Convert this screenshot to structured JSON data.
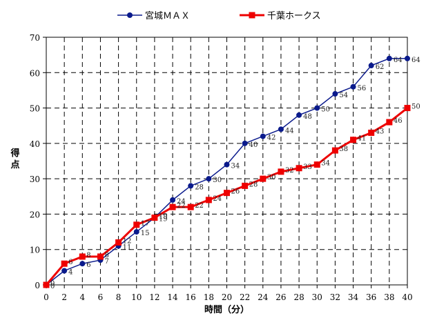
{
  "chart_data": {
    "type": "line",
    "title": "",
    "xlabel": "時間（分）",
    "ylabel": "得点",
    "xlim": [
      0,
      40
    ],
    "ylim": [
      0,
      70
    ],
    "x_ticks": [
      "0",
      "2",
      "4",
      "6",
      "8",
      "10",
      "12",
      "14",
      "16",
      "18",
      "20",
      "22",
      "24",
      "26",
      "28",
      "30",
      "32",
      "34",
      "36",
      "38",
      "40"
    ],
    "y_ticks": [
      "0",
      "10",
      "20",
      "30",
      "40",
      "50",
      "60",
      "70"
    ],
    "grid": "dashed",
    "legend_position": "top-center",
    "series": [
      {
        "name": "宮城ＭＡＸ",
        "color": "#0a1a8c",
        "marker": "circle",
        "x": [
          0,
          2,
          4,
          6,
          8,
          10,
          12,
          14,
          16,
          18,
          20,
          22,
          24,
          26,
          28,
          30,
          32,
          34,
          36,
          38,
          40
        ],
        "values": [
          0,
          4,
          6,
          7,
          11,
          15,
          19,
          24,
          28,
          30,
          34,
          40,
          42,
          44,
          48,
          50,
          54,
          56,
          62,
          64,
          64
        ]
      },
      {
        "name": "千葉ホークス",
        "color": "#ee0000",
        "marker": "square",
        "x": [
          0,
          2,
          4,
          6,
          8,
          10,
          12,
          14,
          16,
          18,
          20,
          22,
          24,
          26,
          28,
          30,
          32,
          34,
          36,
          38,
          40
        ],
        "values": [
          0,
          6,
          8,
          8,
          12,
          17,
          19,
          22,
          22,
          24,
          26,
          28,
          30,
          32,
          33,
          34,
          38,
          41,
          43,
          46,
          50
        ]
      }
    ]
  }
}
